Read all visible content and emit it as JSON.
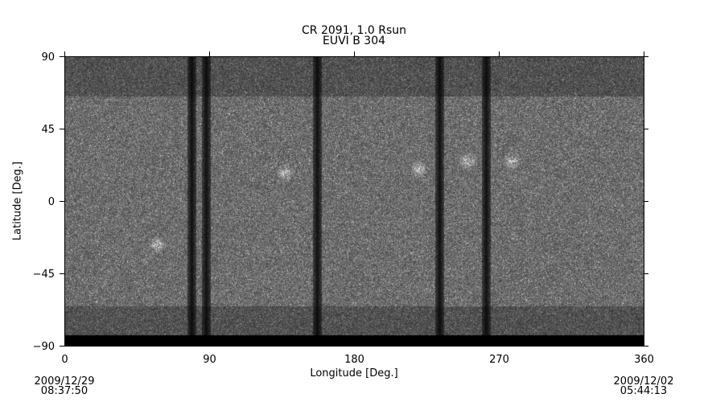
{
  "chart_data": {
    "type": "heatmap",
    "title": "CR 2091, 1.0 Rsun",
    "subtitle": "EUVI B 304",
    "xlabel": "Longitude [Deg.]",
    "ylabel": "Latitude [Deg.]",
    "xlim": [
      0,
      360
    ],
    "ylim": [
      -90,
      90
    ],
    "xticks": [
      "0",
      "90",
      "180",
      "270",
      "360"
    ],
    "yticks": [
      "90",
      "45",
      "0",
      "−45",
      "−90"
    ],
    "colormap": "grayscale",
    "grid": false,
    "data_gap_longitudes": [
      79,
      88,
      157,
      233,
      262
    ],
    "bright_regions": [
      [
        137,
        18
      ],
      [
        58,
        -27
      ],
      [
        250,
        25
      ],
      [
        220,
        20
      ],
      [
        278,
        25
      ]
    ]
  },
  "footer": {
    "left_date": "2009/12/29",
    "left_time": "08:37:50",
    "right_date": "2009/12/02",
    "right_time": "05:44:13"
  }
}
